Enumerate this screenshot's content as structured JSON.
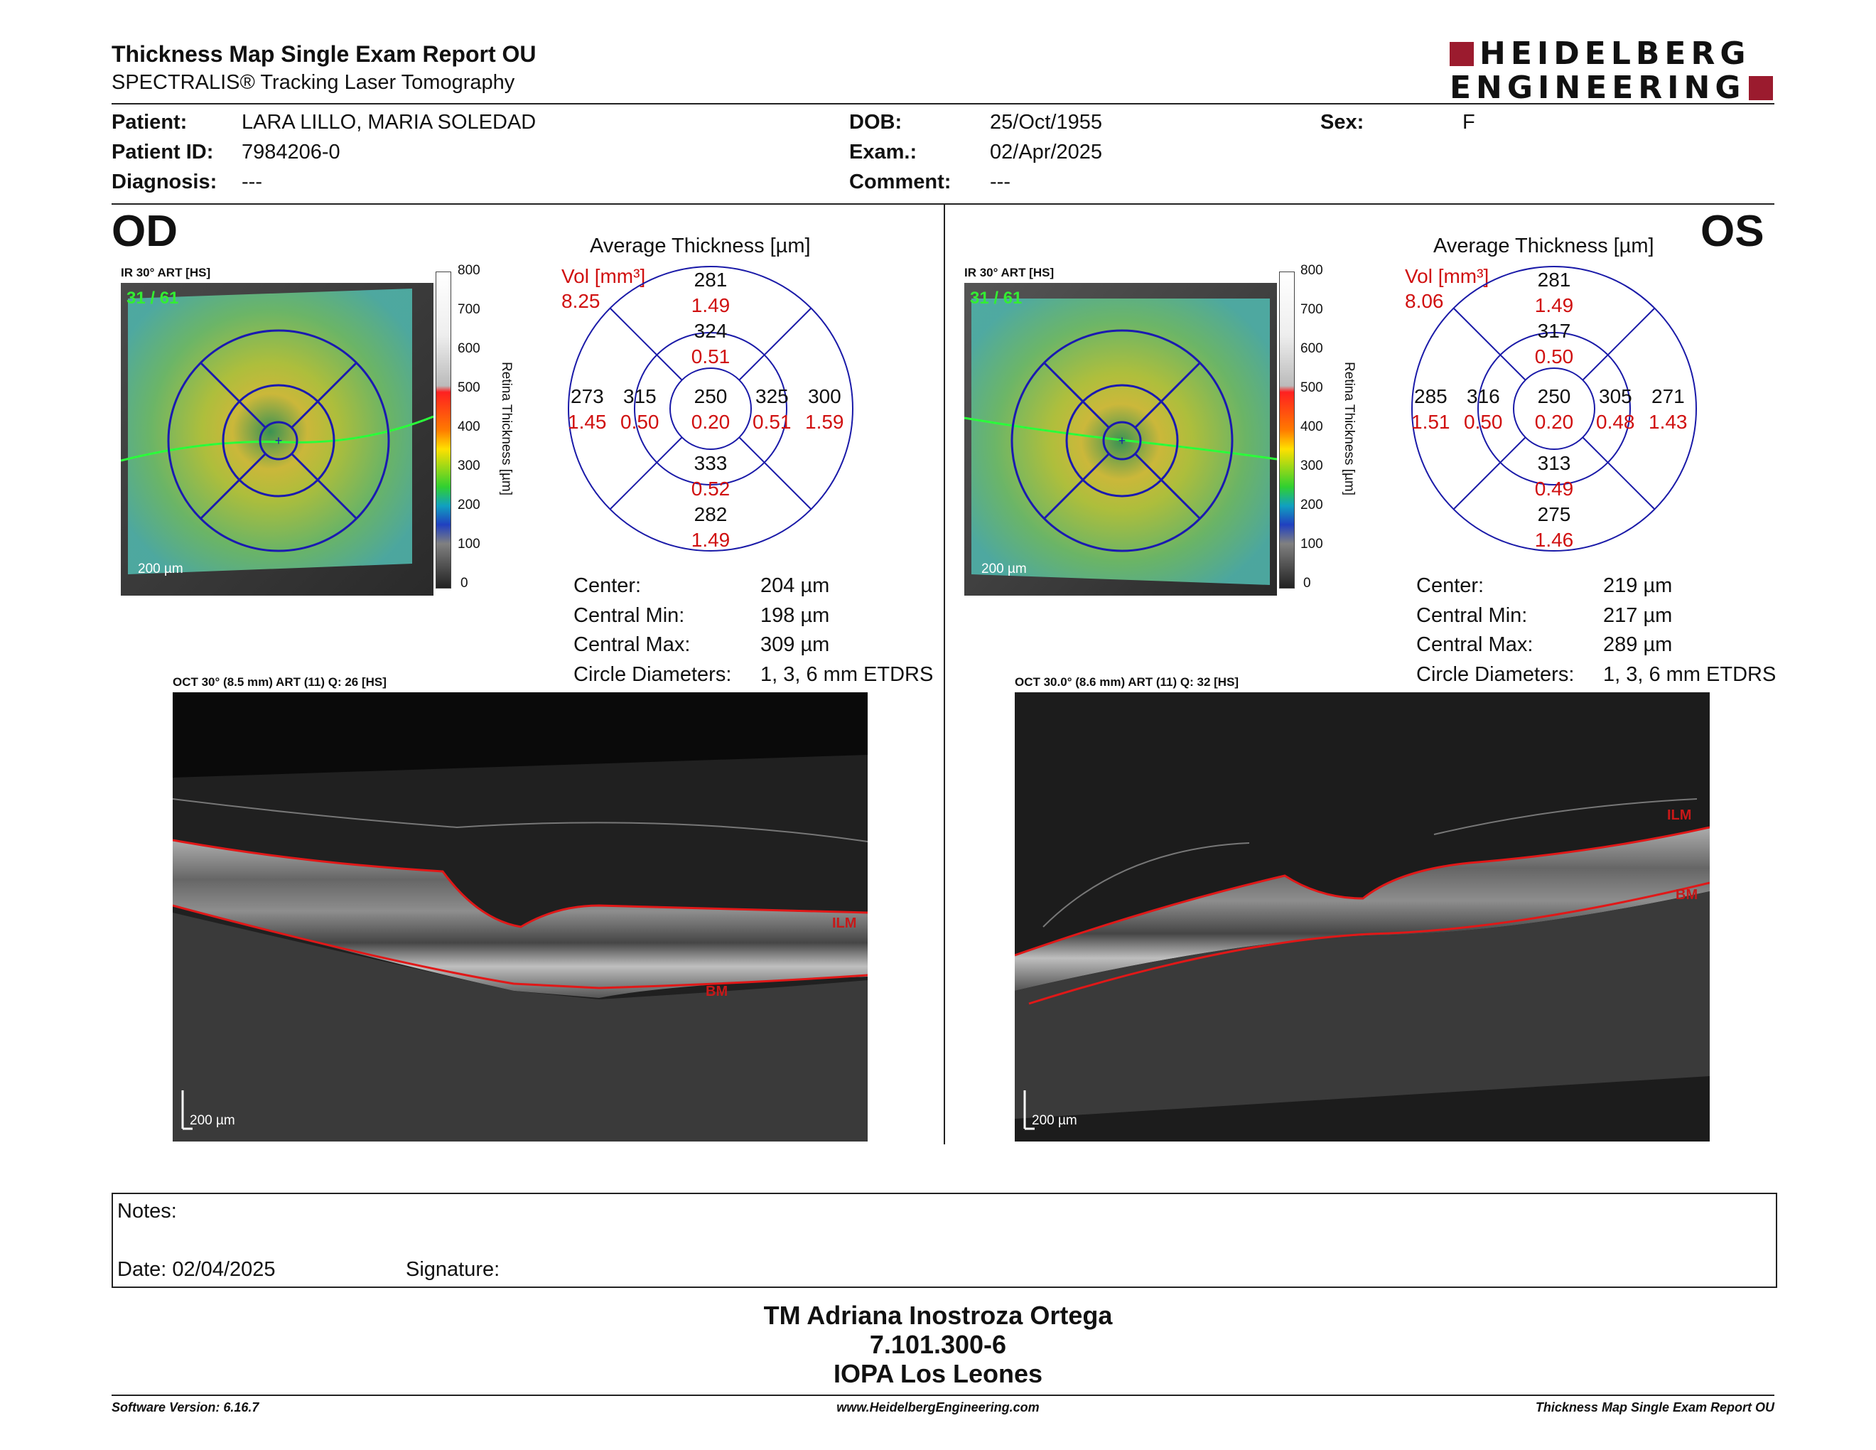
{
  "header": {
    "title": "Thickness Map Single Exam Report OU",
    "subtitle": "SPECTRALIS® Tracking Laser Tomography",
    "logo_line1": "HEIDELBERG",
    "logo_line2": "ENGINEERING",
    "brand_color": "#9b1b2e"
  },
  "patient": {
    "patient_label": "Patient:",
    "patient_value": "LARA LILLO, MARIA SOLEDAD",
    "id_label": "Patient ID:",
    "id_value": "7984206-0",
    "diagnosis_label": "Diagnosis:",
    "diagnosis_value": "---",
    "dob_label": "DOB:",
    "dob_value": "25/Oct/1955",
    "exam_label": "Exam.:",
    "exam_value": "02/Apr/2025",
    "comment_label": "Comment:",
    "comment_value": "---",
    "sex_label": "Sex:",
    "sex_value": "F"
  },
  "od": {
    "eye": "OD",
    "ir_label": "IR 30° ART [HS]",
    "frame_count": "31 / 61",
    "scale_label": "200 µm",
    "colorbar_ticks": [
      "800",
      "700",
      "600",
      "500",
      "400",
      "300",
      "200",
      "100",
      "0"
    ],
    "colorbar_title": "Retina Thickness [µm]",
    "map_title": "Average Thickness [µm]",
    "vol_label": "Vol [mm³]",
    "vol_total": "8.25",
    "sectors": {
      "outer_sup": {
        "t": "281",
        "v": "1.49"
      },
      "inner_sup": {
        "t": "324",
        "v": "0.51"
      },
      "outer_temp": {
        "t": "273",
        "v": "1.45"
      },
      "inner_temp": {
        "t": "315",
        "v": "0.50"
      },
      "center": {
        "t": "250",
        "v": "0.20"
      },
      "inner_nasal": {
        "t": "325",
        "v": "0.51"
      },
      "outer_nasal": {
        "t": "300",
        "v": "1.59"
      },
      "inner_inf": {
        "t": "333",
        "v": "0.52"
      },
      "outer_inf": {
        "t": "282",
        "v": "1.49"
      }
    },
    "stats": {
      "center_label": "Center:",
      "center_value": "204 µm",
      "min_label": "Central Min:",
      "min_value": "198 µm",
      "max_label": "Central Max:",
      "max_value": "309 µm",
      "diam_label": "Circle Diameters:",
      "diam_value": "1, 3, 6 mm ETDRS"
    },
    "oct_label": "OCT 30° (8.5 mm) ART (11) Q: 26 [HS]",
    "ilm_label": "ILM",
    "bm_label": "BM",
    "oct_scale": "200 µm"
  },
  "os": {
    "eye": "OS",
    "ir_label": "IR 30° ART [HS]",
    "frame_count": "31 / 61",
    "scale_label": "200 µm",
    "colorbar_ticks": [
      "800",
      "700",
      "600",
      "500",
      "400",
      "300",
      "200",
      "100",
      "0"
    ],
    "colorbar_title": "Retina Thickness [µm]",
    "map_title": "Average Thickness [µm]",
    "vol_label": "Vol [mm³]",
    "vol_total": "8.06",
    "sectors": {
      "outer_sup": {
        "t": "281",
        "v": "1.49"
      },
      "inner_sup": {
        "t": "317",
        "v": "0.50"
      },
      "outer_temp": {
        "t": "285",
        "v": "1.51"
      },
      "inner_temp": {
        "t": "316",
        "v": "0.50"
      },
      "center": {
        "t": "250",
        "v": "0.20"
      },
      "inner_nasal": {
        "t": "305",
        "v": "0.48"
      },
      "outer_nasal": {
        "t": "271",
        "v": "1.43"
      },
      "inner_inf": {
        "t": "313",
        "v": "0.49"
      },
      "outer_inf": {
        "t": "275",
        "v": "1.46"
      }
    },
    "stats": {
      "center_label": "Center:",
      "center_value": "219 µm",
      "min_label": "Central Min:",
      "min_value": "217 µm",
      "max_label": "Central Max:",
      "max_value": "289 µm",
      "diam_label": "Circle Diameters:",
      "diam_value": "1, 3, 6 mm ETDRS"
    },
    "oct_label": "OCT 30.0° (8.6 mm) ART (11) Q: 32 [HS]",
    "ilm_label": "ILM",
    "bm_label": "BM",
    "oct_scale": "200 µm"
  },
  "notes": {
    "notes_label": "Notes:",
    "date_label": "Date: 02/04/2025",
    "signature_label": "Signature:"
  },
  "signature_block": {
    "name": "TM Adriana Inostroza Ortega",
    "id": "7.101.300-6",
    "org": "IOPA Los Leones"
  },
  "footer": {
    "software": "Software Version: 6.16.7",
    "website": "www.HeidelbergEngineering.com",
    "report": "Thickness Map Single Exam Report OU"
  }
}
